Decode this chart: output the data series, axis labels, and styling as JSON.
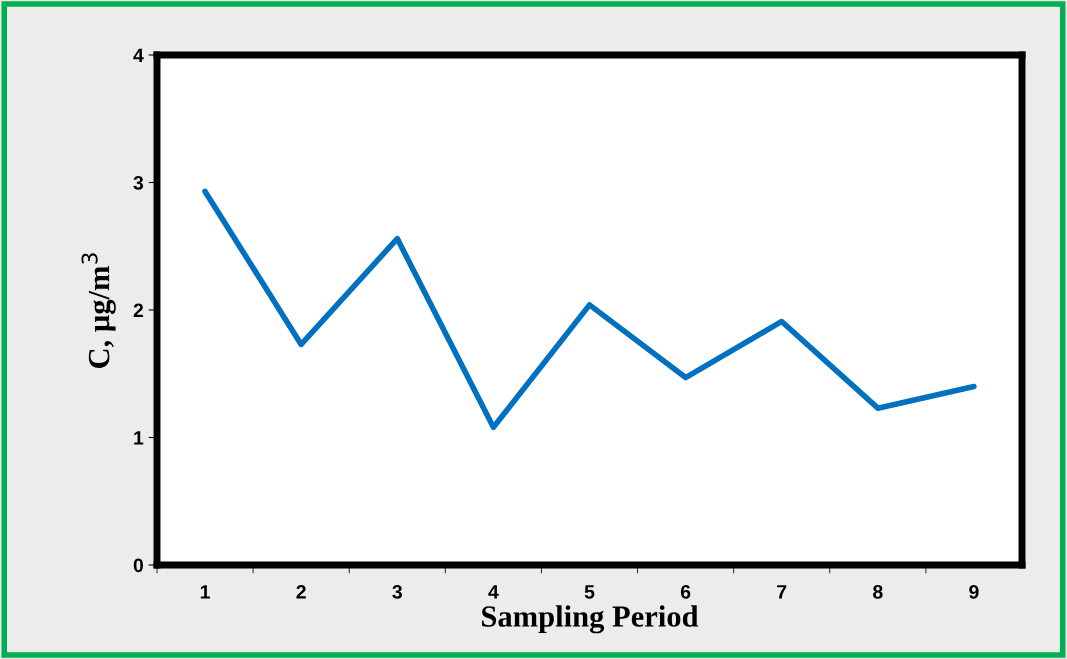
{
  "chart_data": {
    "type": "line",
    "xlabel": "Sampling Period",
    "ylabel": "C, μg/m$^{3}$",
    "categories": [
      "1",
      "2",
      "3",
      "4",
      "5",
      "6",
      "7",
      "8",
      "9"
    ],
    "series": [
      {
        "color": "#0070c0",
        "values": [
          2.93,
          1.73,
          2.56,
          1.08,
          2.04,
          1.47,
          1.91,
          1.23,
          1.4
        ]
      }
    ],
    "ylim": [
      0,
      4
    ],
    "yticks": [
      0,
      1,
      2,
      3,
      4
    ],
    "grid": false,
    "marker": "none",
    "line_style": "solid"
  }
}
